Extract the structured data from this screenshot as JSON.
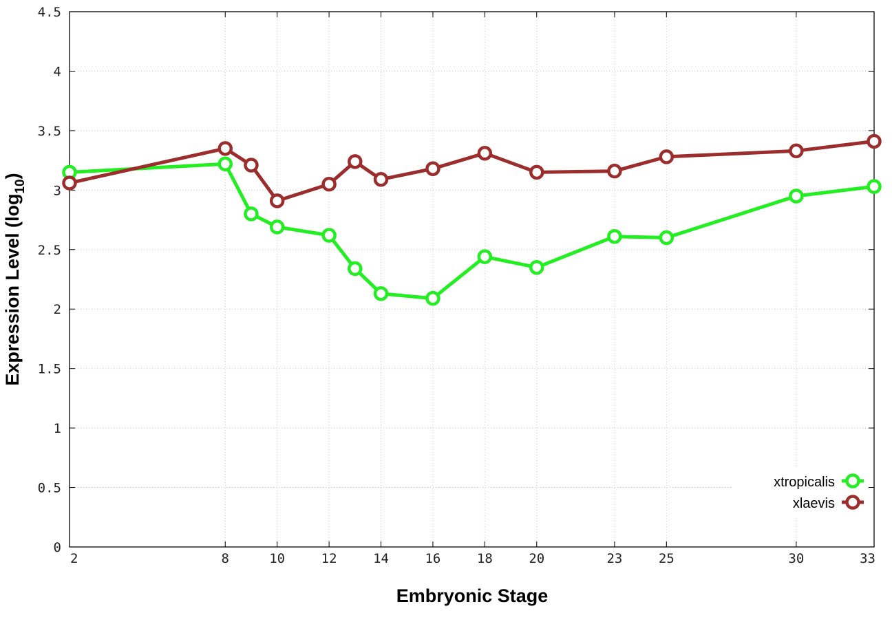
{
  "chart_data": {
    "type": "line",
    "xlabel": "Embryonic Stage",
    "ylabel_main": "Expression Level (log",
    "ylabel_sub": "10",
    "ylabel_close": ")",
    "xlim": [
      2,
      33
    ],
    "ylim": [
      0,
      4.5
    ],
    "x_ticks": [
      2,
      8,
      10,
      12,
      14,
      16,
      18,
      20,
      23,
      25,
      30,
      33
    ],
    "y_ticks": [
      0,
      0.5,
      1,
      1.5,
      2,
      2.5,
      3,
      3.5,
      4,
      4.5
    ],
    "y_tick_labels": [
      "0",
      "0.5",
      "1",
      "1.5",
      "2",
      "2.5",
      "3",
      "3.5",
      "4",
      "4.5"
    ],
    "grid": true,
    "legend_position": "bottom-right",
    "x": [
      2,
      8,
      9,
      10,
      12,
      13,
      14,
      16,
      18,
      20,
      23,
      25,
      30,
      33
    ],
    "series": [
      {
        "name": "xtropicalis",
        "color": "#22ee22",
        "values": [
          3.15,
          3.22,
          2.8,
          2.69,
          2.62,
          2.34,
          2.13,
          2.09,
          2.44,
          2.35,
          2.61,
          2.6,
          2.95,
          3.03
        ]
      },
      {
        "name": "xlaevis",
        "color": "#9b2d2d",
        "values": [
          3.06,
          3.35,
          3.21,
          2.91,
          3.05,
          3.24,
          3.09,
          3.18,
          3.31,
          3.15,
          3.16,
          3.28,
          3.33,
          3.41
        ]
      }
    ]
  }
}
